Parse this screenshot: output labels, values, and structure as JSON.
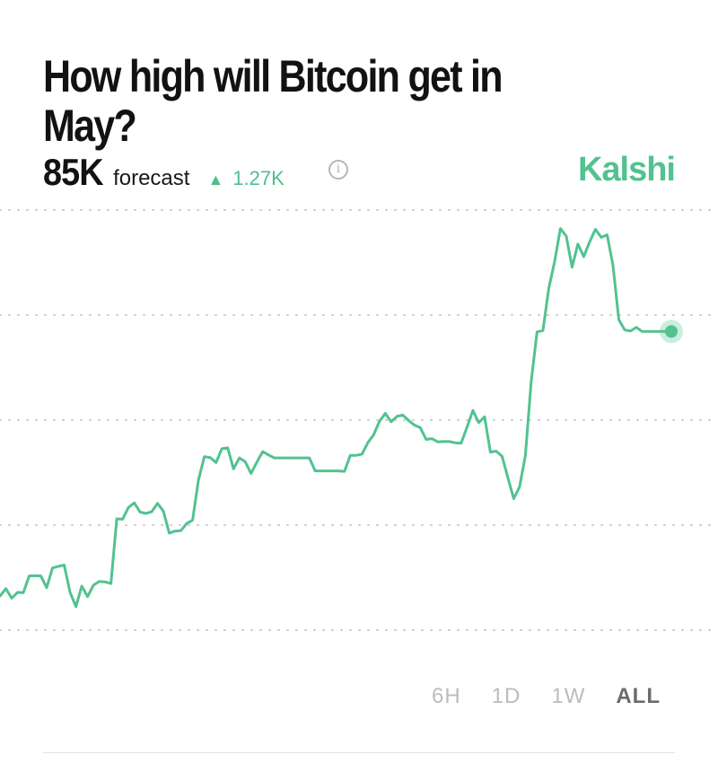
{
  "header": {
    "title": "How high will Bitcoin get in May?",
    "forecast_value": "85K",
    "forecast_label": "forecast",
    "change_value": "1.27K",
    "change_direction": "up",
    "info_icon": "info-icon",
    "brand": "Kalshi"
  },
  "colors": {
    "accent": "#52c28f",
    "gridline": "#cccccc",
    "text": "#121212"
  },
  "range_tabs": [
    {
      "label": "6H",
      "active": false
    },
    {
      "label": "1D",
      "active": false
    },
    {
      "label": "1W",
      "active": false
    },
    {
      "label": "ALL",
      "active": true
    }
  ],
  "chart_data": {
    "type": "line",
    "title": "",
    "xlabel": "",
    "ylabel": "",
    "grid": true,
    "gridline_count": 5,
    "ylim": [
      0,
      100
    ],
    "series": [
      {
        "values": [
          8.1,
          9.9,
          7.6,
          9.0,
          8.9,
          12.9,
          13.0,
          12.9,
          10.1,
          14.8,
          15.2,
          15.5,
          9.0,
          5.6,
          10.5,
          8.0,
          10.7,
          11.6,
          11.5,
          11.1,
          26.5,
          26.4,
          29.2,
          30.3,
          28.1,
          27.8,
          28.2,
          30.2,
          28.3,
          23.1,
          23.6,
          23.7,
          25.4,
          26.2,
          35.7,
          41.3,
          41.1,
          39.9,
          43.2,
          43.4,
          38.4,
          41.0,
          40.1,
          37.3,
          40.0,
          42.5,
          41.7,
          41.0,
          41.0,
          41.0,
          41.0,
          41.0,
          41.0,
          41.0,
          37.9,
          37.9,
          37.9,
          37.9,
          37.9,
          37.8,
          41.6,
          41.6,
          41.9,
          44.6,
          46.5,
          49.7,
          51.6,
          49.6,
          50.9,
          51.2,
          49.9,
          48.8,
          48.2,
          45.4,
          45.6,
          44.8,
          44.9,
          44.9,
          44.6,
          44.5,
          48.3,
          52.3,
          49.4,
          50.8,
          42.4,
          42.6,
          41.4,
          36.3,
          31.3,
          34.1,
          41.6,
          59.3,
          71.0,
          71.3,
          81.3,
          87.7,
          95.6,
          93.8,
          86.4,
          91.9,
          88.9,
          92.4,
          95.4,
          93.5,
          94.1,
          86.8,
          73.9,
          71.5,
          71.2,
          72.1,
          71.1,
          71.1,
          71.1,
          71.1,
          71.1,
          71.1
        ]
      }
    ]
  }
}
